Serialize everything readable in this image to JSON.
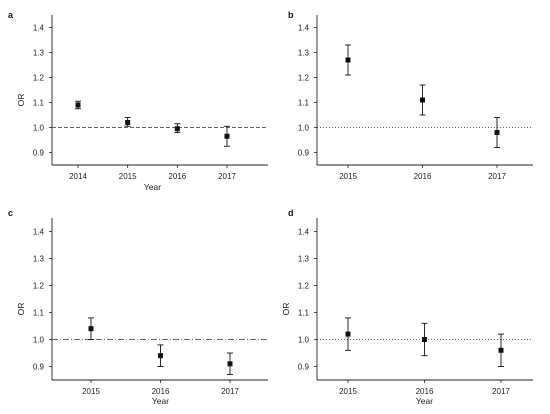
{
  "chart_data": [
    {
      "type": "scatter",
      "panel_label": "a",
      "xlabel": "Year",
      "ylabel": "OR",
      "ylim": [
        0.85,
        1.45
      ],
      "yticks": [
        0.9,
        1.0,
        1.1,
        1.2,
        1.3,
        1.4
      ],
      "ytick_labels": [
        "0.9",
        "1.0",
        "1.1",
        "1.2",
        "1.3",
        "1.4"
      ],
      "categories": [
        "2014",
        "2015",
        "2016",
        "2017"
      ],
      "series": [
        {
          "values": [
            1.09,
            1.02,
            0.995,
            0.965
          ],
          "error_low": [
            1.075,
            1.005,
            0.98,
            0.925
          ],
          "error_high": [
            1.105,
            1.04,
            1.015,
            1.005
          ]
        }
      ],
      "reference_line": 1.0,
      "reference_style": "dashed",
      "grid": false
    },
    {
      "type": "scatter",
      "panel_label": "b",
      "xlabel": "",
      "ylabel": "",
      "ylim": [
        0.85,
        1.45
      ],
      "yticks": [
        0.9,
        1.0,
        1.1,
        1.2,
        1.3,
        1.4
      ],
      "ytick_labels": [
        "0.9",
        "1.0",
        "1.1",
        "1.2",
        "1.3",
        "1.4"
      ],
      "categories": [
        "2015",
        "2016",
        "2017"
      ],
      "series": [
        {
          "values": [
            1.27,
            1.11,
            0.98
          ],
          "error_low": [
            1.21,
            1.05,
            0.92
          ],
          "error_high": [
            1.33,
            1.17,
            1.04
          ]
        }
      ],
      "reference_line": 1.0,
      "reference_style": "dotted",
      "grid": false
    },
    {
      "type": "scatter",
      "panel_label": "c",
      "xlabel": "Year",
      "ylabel": "OR",
      "ylim": [
        0.85,
        1.45
      ],
      "yticks": [
        0.9,
        1.0,
        1.1,
        1.2,
        1.3,
        1.4
      ],
      "ytick_labels": [
        "0.9",
        "1.0",
        "1.1",
        "1.2",
        "1.3",
        "1.4"
      ],
      "categories": [
        "2015",
        "2016",
        "2017"
      ],
      "series": [
        {
          "values": [
            1.04,
            0.94,
            0.91
          ],
          "error_low": [
            1.0,
            0.9,
            0.87
          ],
          "error_high": [
            1.08,
            0.98,
            0.95
          ]
        }
      ],
      "reference_line": 1.0,
      "reference_style": "dashdot",
      "grid": false
    },
    {
      "type": "scatter",
      "panel_label": "d",
      "xlabel": "Year",
      "ylabel": "OR",
      "ylim": [
        0.85,
        1.45
      ],
      "yticks": [
        0.9,
        1.0,
        1.1,
        1.2,
        1.3,
        1.4
      ],
      "ytick_labels": [
        "0.9",
        "1.0",
        "1.1",
        "1.2",
        "1.3",
        "1.4"
      ],
      "categories": [
        "2015",
        "2016",
        "2017"
      ],
      "series": [
        {
          "values": [
            1.02,
            1.0,
            0.96
          ],
          "error_low": [
            0.96,
            0.94,
            0.9
          ],
          "error_high": [
            1.08,
            1.06,
            1.02
          ]
        }
      ],
      "reference_line": 1.0,
      "reference_style": "dotted",
      "grid": false
    }
  ]
}
